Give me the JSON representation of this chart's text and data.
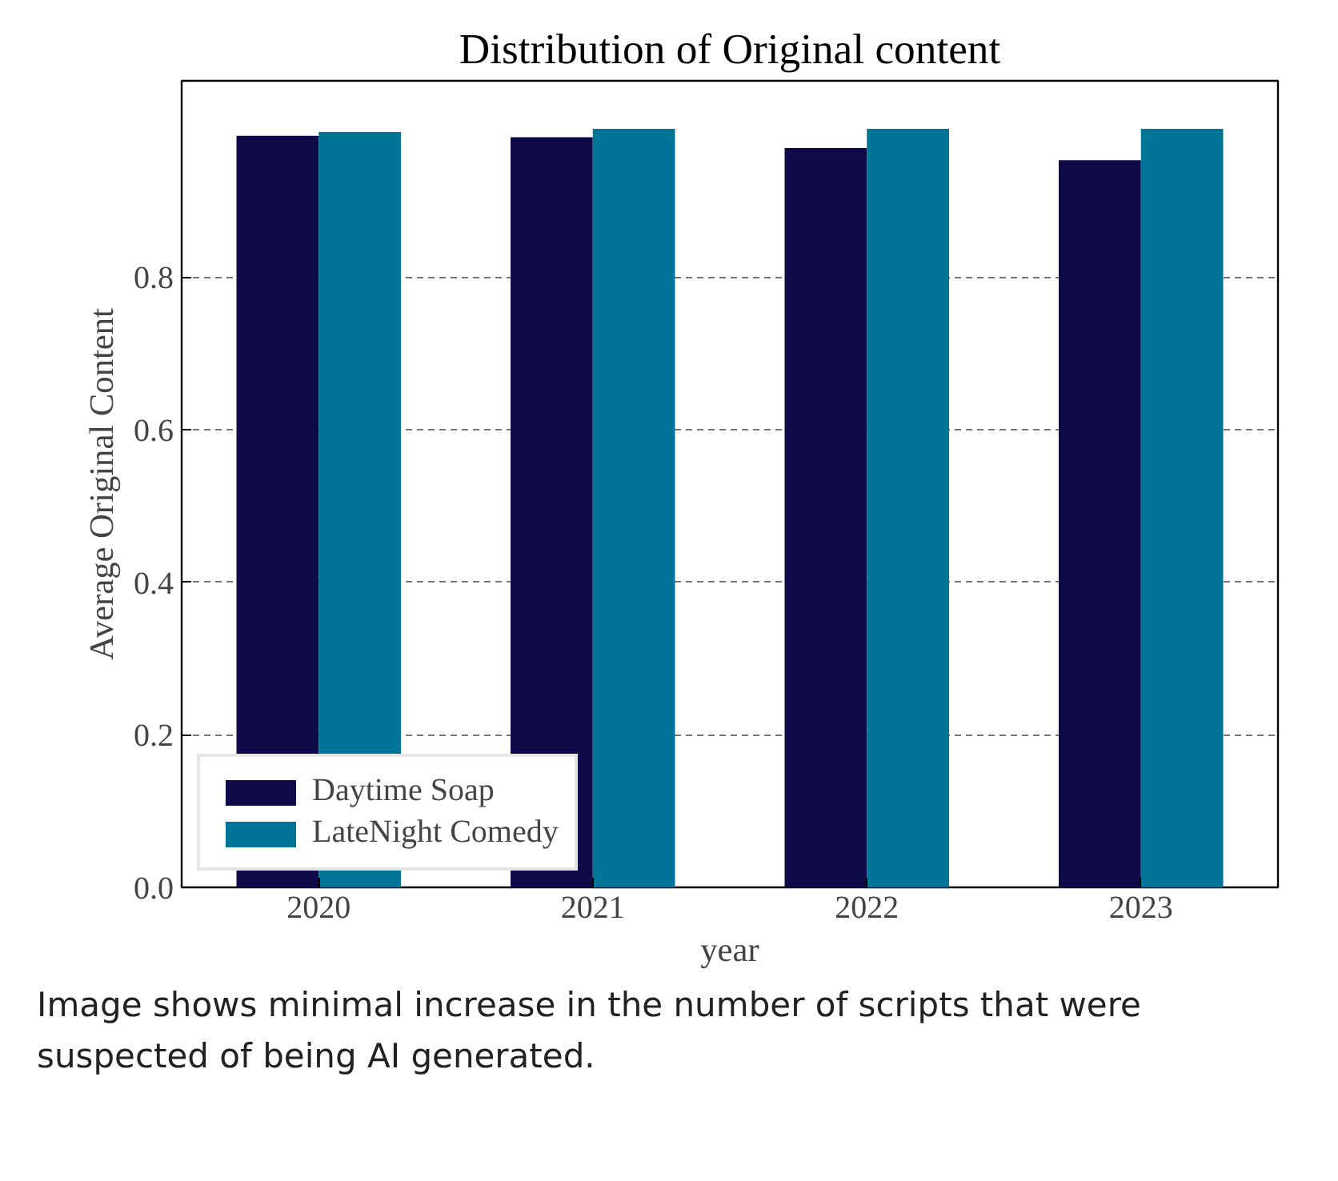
{
  "chart_data": {
    "type": "bar",
    "title": "Distribution of Original content",
    "xlabel": "year",
    "ylabel": "Average Original Content",
    "categories": [
      "2020",
      "2021",
      "2022",
      "2023"
    ],
    "series": [
      {
        "name": "Daytime Soap",
        "color": "#0e0a47",
        "values": [
          0.985,
          0.983,
          0.969,
          0.953
        ]
      },
      {
        "name": "LateNight Comedy",
        "color": "#007597",
        "values": [
          0.99,
          0.994,
          0.994,
          0.994
        ]
      }
    ],
    "ylim": [
      0,
      1.057
    ],
    "yticks": [
      {
        "value": 0,
        "label": "0.0"
      },
      {
        "value": 0.2,
        "label": "0.2"
      },
      {
        "value": 0.4,
        "label": "0.4"
      },
      {
        "value": 0.6,
        "label": "0.6"
      },
      {
        "value": 0.8,
        "label": "0.8"
      }
    ],
    "grid": "y",
    "legend": "bottom left",
    "annotations": [
      "Image shows minimal increase in the number of scripts that were suspected of being AI generated."
    ]
  }
}
